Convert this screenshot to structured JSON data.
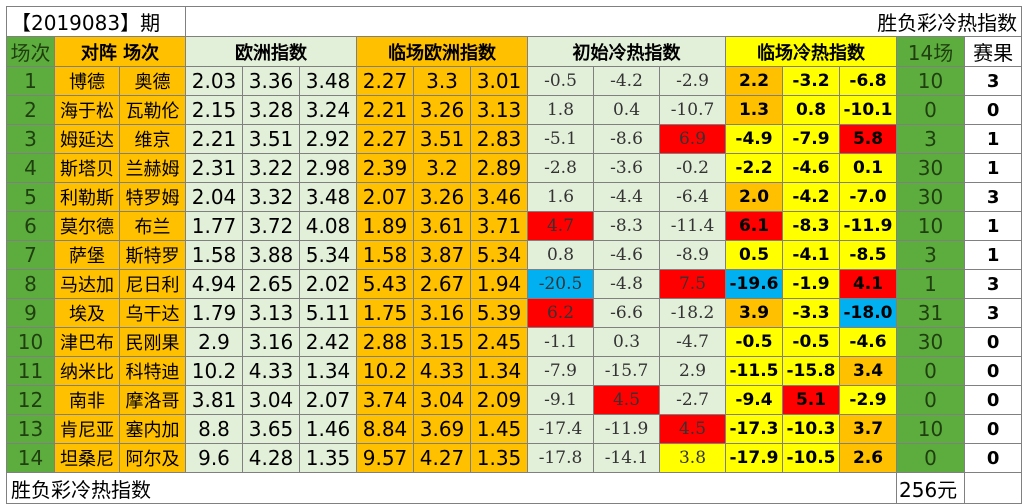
{
  "header": {
    "period": "【2019083】期",
    "title": "胜负彩冷热指数"
  },
  "columns": {
    "round": "场次",
    "matchup": "对阵 场次",
    "euro": "欧洲指数",
    "live_euro": "临场欧洲指数",
    "init_heat": "初始冷热指数",
    "live_heat": "临场冷热指数",
    "fourteen": "14场",
    "result": "赛果"
  },
  "rows": [
    {
      "no": "1",
      "home": "博德",
      "away": "奥德",
      "euro": [
        "2.03",
        "3.36",
        "3.48"
      ],
      "live": [
        "2.27",
        "3.3",
        "3.01"
      ],
      "init": [
        "-0.5",
        "-4.2",
        "-2.9"
      ],
      "heat": [
        "2.2",
        "-3.2",
        "-6.8"
      ],
      "n14": "10",
      "result": "3"
    },
    {
      "no": "2",
      "home": "海于松",
      "away": "瓦勒伦",
      "euro": [
        "2.15",
        "3.28",
        "3.24"
      ],
      "live": [
        "2.21",
        "3.26",
        "3.13"
      ],
      "init": [
        "1.8",
        "0.4",
        "-10.7"
      ],
      "heat": [
        "1.3",
        "0.8",
        "-10.1"
      ],
      "n14": "0",
      "result": "0"
    },
    {
      "no": "3",
      "home": "姆延达",
      "away": "维京",
      "euro": [
        "2.21",
        "3.51",
        "2.92"
      ],
      "live": [
        "2.27",
        "3.51",
        "2.83"
      ],
      "init": [
        "-5.1",
        "-8.6",
        "6.9"
      ],
      "heat": [
        "-4.9",
        "-7.9",
        "5.8"
      ],
      "n14": "3",
      "result": "1"
    },
    {
      "no": "4",
      "home": "斯塔贝",
      "away": "兰赫姆",
      "euro": [
        "2.31",
        "3.22",
        "2.98"
      ],
      "live": [
        "2.39",
        "3.2",
        "2.89"
      ],
      "init": [
        "-2.8",
        "-3.6",
        "-0.2"
      ],
      "heat": [
        "-2.2",
        "-4.6",
        "0.1"
      ],
      "n14": "30",
      "result": "1"
    },
    {
      "no": "5",
      "home": "利勒斯",
      "away": "特罗姆",
      "euro": [
        "2.04",
        "3.32",
        "3.48"
      ],
      "live": [
        "2.07",
        "3.26",
        "3.46"
      ],
      "init": [
        "1.6",
        "-4.4",
        "-6.4"
      ],
      "heat": [
        "2.0",
        "-4.2",
        "-7.0"
      ],
      "n14": "30",
      "result": "3"
    },
    {
      "no": "6",
      "home": "莫尔德",
      "away": "布兰",
      "euro": [
        "1.77",
        "3.72",
        "4.08"
      ],
      "live": [
        "1.89",
        "3.61",
        "3.71"
      ],
      "init": [
        "4.7",
        "-8.3",
        "-11.4"
      ],
      "heat": [
        "6.1",
        "-8.3",
        "-11.9"
      ],
      "n14": "10",
      "result": "1"
    },
    {
      "no": "7",
      "home": "萨堡",
      "away": "斯特罗",
      "euro": [
        "1.58",
        "3.88",
        "5.34"
      ],
      "live": [
        "1.58",
        "3.87",
        "5.34"
      ],
      "init": [
        "0.8",
        "-4.6",
        "-8.9"
      ],
      "heat": [
        "0.5",
        "-4.1",
        "-8.5"
      ],
      "n14": "3",
      "result": "1"
    },
    {
      "no": "8",
      "home": "马达加",
      "away": "尼日利",
      "euro": [
        "4.94",
        "2.65",
        "2.02"
      ],
      "live": [
        "5.43",
        "2.67",
        "1.94"
      ],
      "init": [
        "-20.5",
        "-4.8",
        "7.5"
      ],
      "heat": [
        "-19.6",
        "-1.9",
        "4.1"
      ],
      "n14": "1",
      "result": "3"
    },
    {
      "no": "9",
      "home": "埃及",
      "away": "乌干达",
      "euro": [
        "1.79",
        "3.13",
        "5.11"
      ],
      "live": [
        "1.75",
        "3.16",
        "5.39"
      ],
      "init": [
        "6.2",
        "-6.6",
        "-18.2"
      ],
      "heat": [
        "3.9",
        "-3.3",
        "-18.0"
      ],
      "n14": "31",
      "result": "3"
    },
    {
      "no": "10",
      "home": "津巴布",
      "away": "民刚果",
      "euro": [
        "2.9",
        "3.16",
        "2.42"
      ],
      "live": [
        "2.88",
        "3.15",
        "2.45"
      ],
      "init": [
        "-1.1",
        "0.3",
        "-4.7"
      ],
      "heat": [
        "-0.5",
        "-0.5",
        "-4.6"
      ],
      "n14": "30",
      "result": "0"
    },
    {
      "no": "11",
      "home": "纳米比",
      "away": "科特迪",
      "euro": [
        "10.2",
        "4.33",
        "1.34"
      ],
      "live": [
        "10.2",
        "4.33",
        "1.34"
      ],
      "init": [
        "-7.9",
        "-15.7",
        "2.9"
      ],
      "heat": [
        "-11.5",
        "-15.8",
        "3.4"
      ],
      "n14": "0",
      "result": "0"
    },
    {
      "no": "12",
      "home": "南非",
      "away": "摩洛哥",
      "euro": [
        "3.81",
        "3.04",
        "2.07"
      ],
      "live": [
        "3.74",
        "3.04",
        "2.09"
      ],
      "init": [
        "-9.1",
        "4.5",
        "-2.7"
      ],
      "heat": [
        "-9.4",
        "5.1",
        "-2.9"
      ],
      "n14": "0",
      "result": "0"
    },
    {
      "no": "13",
      "home": "肯尼亚",
      "away": "塞内加",
      "euro": [
        "8.8",
        "3.65",
        "1.46"
      ],
      "live": [
        "8.84",
        "3.69",
        "1.45"
      ],
      "init": [
        "-17.4",
        "-11.9",
        "4.5"
      ],
      "heat": [
        "-17.3",
        "-10.3",
        "3.7"
      ],
      "n14": "10",
      "result": "0"
    },
    {
      "no": "14",
      "home": "坦桑尼",
      "away": "阿尔及",
      "euro": [
        "9.6",
        "4.28",
        "1.35"
      ],
      "live": [
        "9.57",
        "4.27",
        "1.35"
      ],
      "init": [
        "-17.8",
        "-14.1",
        "3.8"
      ],
      "heat": [
        "-17.9",
        "-10.5",
        "2.6"
      ],
      "n14": "0",
      "result": "0"
    }
  ],
  "highlights": {
    "init": {
      "2": [
        "",
        "",
        "hot"
      ],
      "5": [
        "hot",
        "",
        ""
      ],
      "7": [
        "cold",
        "",
        "hot"
      ],
      "8": [
        "hot",
        "",
        ""
      ],
      "11": [
        "",
        "hot",
        ""
      ],
      "12": [
        "",
        "",
        "hot"
      ],
      "13": [
        "",
        "",
        "yellow"
      ]
    },
    "heat": {
      "0": [
        "orange",
        "",
        ""
      ],
      "1": [
        "orange",
        "",
        ""
      ],
      "2": [
        "",
        "",
        "hot"
      ],
      "4": [
        "orange",
        "",
        ""
      ],
      "5": [
        "hot",
        "",
        ""
      ],
      "7": [
        "cold",
        "",
        "hot"
      ],
      "8": [
        "orange",
        "",
        "cold"
      ],
      "10": [
        "",
        "",
        "orange"
      ],
      "11": [
        "",
        "hot",
        ""
      ],
      "12": [
        "",
        "",
        "orange"
      ],
      "13": [
        "",
        "",
        "orange"
      ]
    }
  },
  "colors": {
    "hot": "#ff0000",
    "cold": "#00b0f0",
    "orange": "#ffc000",
    "yellow": "#ffff00",
    "green": "#5cad3d",
    "light_green": "#e2efd9"
  },
  "footer": {
    "title": "胜负彩冷热指数",
    "cost": "256元"
  }
}
